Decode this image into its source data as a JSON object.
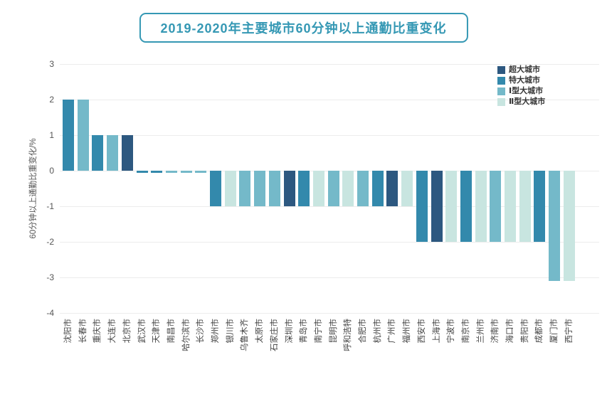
{
  "page": {
    "background": "#ffffff"
  },
  "header": {
    "title": "2019-2020年主要城市60分钟以上通勤比重变化",
    "accent_color": "#3598b4"
  },
  "chart_data": {
    "type": "bar",
    "title": "2019-2020年主要城市60分钟以上通勤比重变化",
    "xlabel": "",
    "ylabel": "60分钟以上通勤比重变化/%",
    "ylim": [
      -4,
      3
    ],
    "yticks": [
      3,
      2,
      1,
      0,
      -1,
      -2,
      -3,
      -4
    ],
    "grid": true,
    "legend_position": "top-right",
    "legend": [
      {
        "label": "超大城市",
        "color": "#2d5880"
      },
      {
        "label": "特大城市",
        "color": "#3389ac"
      },
      {
        "label": "Ⅰ型大城市",
        "color": "#74b9c9"
      },
      {
        "label": "Ⅱ型大城市",
        "color": "#c8e5e0"
      }
    ],
    "categories": [
      "沈阳市",
      "长春市",
      "重庆市",
      "大连市",
      "北京市",
      "武汉市",
      "天津市",
      "南昌市",
      "哈尔滨市",
      "长沙市",
      "郑州市",
      "银川市",
      "乌鲁木齐",
      "太原市",
      "石家庄市",
      "深圳市",
      "青岛市",
      "南宁市",
      "昆明市",
      "呼和浩特",
      "合肥市",
      "杭州市",
      "广州市",
      "福州市",
      "西安市",
      "上海市",
      "宁波市",
      "南京市",
      "兰州市",
      "济南市",
      "海口市",
      "贵阳市",
      "成都市",
      "厦门市",
      "西宁市"
    ],
    "values": [
      2,
      2,
      1,
      1,
      1,
      -0.05,
      -0.05,
      -0.05,
      -0.05,
      -0.05,
      -1,
      -1,
      -1,
      -1,
      -1,
      -1,
      -1,
      -1,
      -1,
      -1,
      -1,
      -1,
      -1,
      -1,
      -2,
      -2,
      -2,
      -2,
      -2,
      -2,
      -2,
      -2,
      -2,
      -3.1,
      -3.1
    ],
    "group_index": [
      1,
      2,
      1,
      2,
      0,
      1,
      1,
      2,
      2,
      2,
      1,
      3,
      2,
      2,
      2,
      0,
      1,
      3,
      2,
      3,
      2,
      1,
      0,
      3,
      1,
      0,
      3,
      1,
      3,
      2,
      3,
      3,
      1,
      2,
      3
    ]
  }
}
